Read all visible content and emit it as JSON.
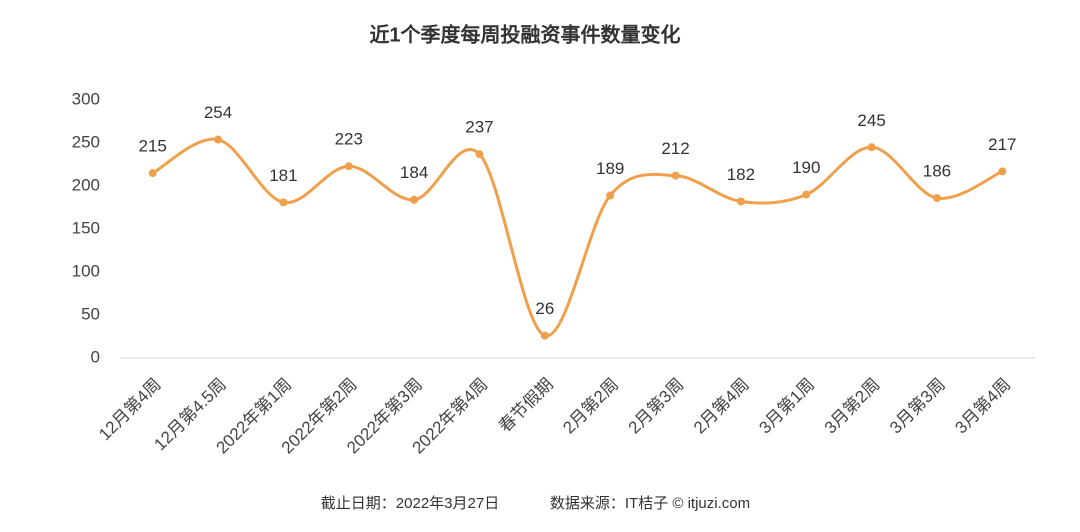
{
  "chart_data": {
    "type": "line",
    "title": "近1个季度每周投融资事件数量变化",
    "categories": [
      "12月第4周",
      "12月第4.5周",
      "2022年第1周",
      "2022年第2周",
      "2022年第3周",
      "2022年第4周",
      "春节假期",
      "2月第2周",
      "2月第3周",
      "2月第4周",
      "3月第1周",
      "3月第2周",
      "3月第3周",
      "3月第4周"
    ],
    "values": [
      215,
      254,
      181,
      223,
      184,
      237,
      26,
      189,
      212,
      182,
      190,
      245,
      186,
      217
    ],
    "color": "#f0a04b",
    "ylim": [
      0,
      300
    ],
    "yticks": [
      0,
      50,
      100,
      150,
      200,
      250,
      300
    ],
    "date_note": "截止日期：2022年3月27日",
    "source": "数据来源：IT桔子 © itjuzi.com"
  }
}
